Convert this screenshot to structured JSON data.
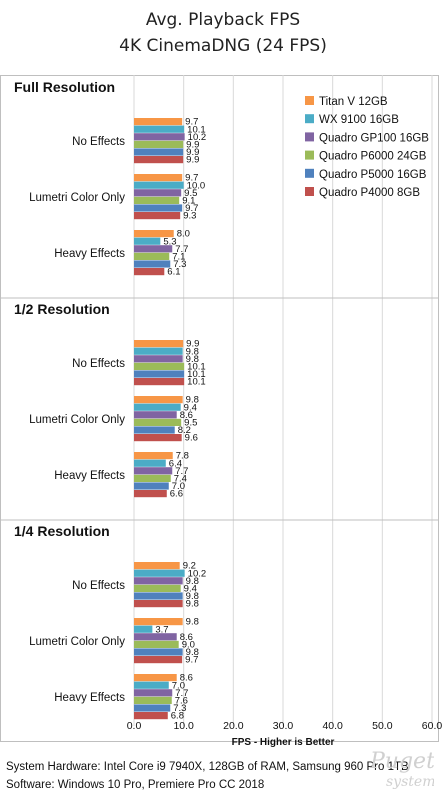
{
  "chart_data": {
    "type": "bar",
    "orientation": "horizontal",
    "title": "Avg. Playback FPS",
    "subtitle": "4K CinemaDNG (24 FPS)",
    "xlabel": "FPS - Higher is Better",
    "xlim": [
      0,
      60
    ],
    "xticks": [
      "0.0",
      "10.0",
      "20.0",
      "30.0",
      "40.0",
      "50.0",
      "60.0"
    ],
    "grid": true,
    "legend_position": "right",
    "series": [
      {
        "name": "Titan V 12GB",
        "color": "#f79646"
      },
      {
        "name": "WX 9100 16GB",
        "color": "#4bacc6"
      },
      {
        "name": "Quadro GP100 16GB",
        "color": "#8064a2"
      },
      {
        "name": "Quadro P6000 24GB",
        "color": "#9bbb59"
      },
      {
        "name": "Quadro P5000 16GB",
        "color": "#4f81bd"
      },
      {
        "name": "Quadro P4000 8GB",
        "color": "#c0504d"
      }
    ],
    "groups": [
      {
        "name": "Full Resolution",
        "categories": [
          {
            "name": "No Effects",
            "values": [
              9.7,
              10.1,
              10.2,
              9.9,
              9.9,
              9.9
            ]
          },
          {
            "name": "Lumetri Color Only",
            "values": [
              9.7,
              10.0,
              9.5,
              9.1,
              9.7,
              9.3
            ]
          },
          {
            "name": "Heavy Effects",
            "values": [
              8.0,
              5.3,
              7.7,
              7.1,
              7.3,
              6.1
            ]
          }
        ]
      },
      {
        "name": "1/2 Resolution",
        "categories": [
          {
            "name": "No Effects",
            "values": [
              9.9,
              9.8,
              9.8,
              10.1,
              10.1,
              10.1
            ]
          },
          {
            "name": "Lumetri Color Only",
            "values": [
              9.8,
              9.4,
              8.6,
              9.5,
              8.2,
              9.6
            ]
          },
          {
            "name": "Heavy Effects",
            "values": [
              7.8,
              6.4,
              7.7,
              7.4,
              7.0,
              6.6
            ]
          }
        ]
      },
      {
        "name": "1/4 Resolution",
        "categories": [
          {
            "name": "No Effects",
            "values": [
              9.2,
              10.2,
              9.8,
              9.4,
              9.8,
              9.8
            ]
          },
          {
            "name": "Lumetri Color Only",
            "values": [
              9.8,
              3.7,
              8.6,
              9.0,
              9.8,
              9.7
            ]
          },
          {
            "name": "Heavy Effects",
            "values": [
              8.6,
              7.0,
              7.7,
              7.6,
              7.3,
              6.8
            ]
          }
        ]
      }
    ]
  },
  "footer": {
    "hardware": "System Hardware: Intel Core i9 7940X,  128GB of RAM, Samsung 960 Pro 1TB",
    "software": "Software: Windows 10 Pro, Premiere Pro CC 2018"
  },
  "watermark": {
    "line1": "Puget",
    "line2": "systems"
  }
}
